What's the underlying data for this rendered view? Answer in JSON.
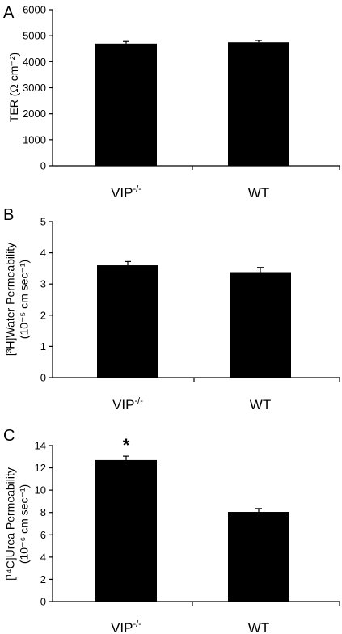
{
  "chart_data": [
    {
      "type": "bar",
      "panel": "A",
      "categories": [
        "VIP-/-",
        "WT"
      ],
      "values": [
        4700,
        4750
      ],
      "errors": [
        80,
        70
      ],
      "ylabel_lines": [
        "TER (Ω cm⁻²)"
      ],
      "ylim": [
        0,
        6000
      ],
      "yticks": [
        "0",
        "1000",
        "2000",
        "3000",
        "4000",
        "5000",
        "6000"
      ],
      "annotations": [
        "",
        ""
      ]
    },
    {
      "type": "bar",
      "panel": "B",
      "categories": [
        "VIP-/-",
        "WT"
      ],
      "values": [
        3.6,
        3.38
      ],
      "errors": [
        0.12,
        0.15
      ],
      "ylabel_lines": [
        "[³H]Water Permeability",
        "(10⁻⁵ cm sec⁻¹)"
      ],
      "ylim": [
        0,
        5
      ],
      "yticks": [
        "0",
        "1",
        "2",
        "3",
        "4",
        "5"
      ],
      "annotations": [
        "",
        ""
      ]
    },
    {
      "type": "bar",
      "panel": "C",
      "categories": [
        "VIP-/-",
        "WT"
      ],
      "values": [
        12.7,
        8.05
      ],
      "errors": [
        0.35,
        0.3
      ],
      "ylabel_lines": [
        "[¹⁴C]Urea Permeability",
        "(10⁻⁶ cm sec⁻¹)"
      ],
      "ylim": [
        0,
        14
      ],
      "yticks": [
        "0",
        "2",
        "4",
        "6",
        "8",
        "10",
        "12",
        "14"
      ],
      "annotations": [
        "*",
        ""
      ]
    }
  ],
  "colors": {
    "bar": "#000000",
    "axis": "#000000"
  }
}
